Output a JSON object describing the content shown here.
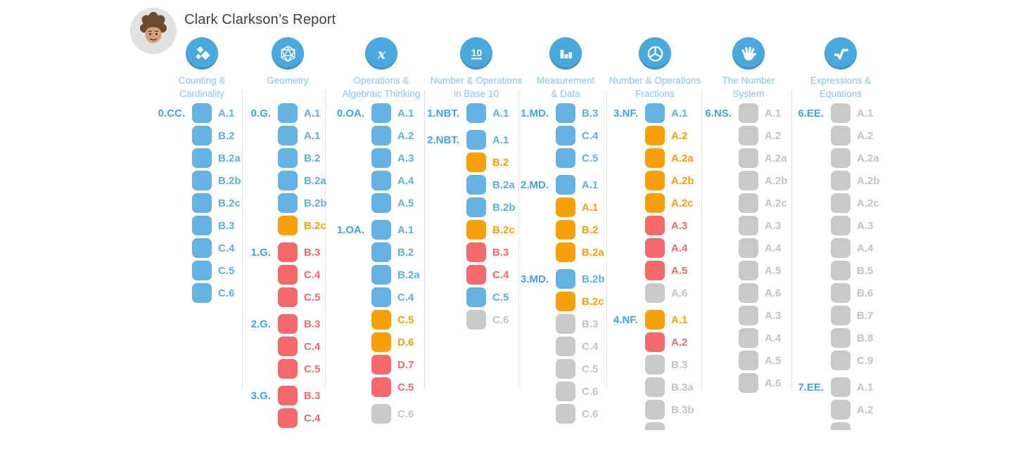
{
  "header": {
    "title": "Clark Clarkson’s Report"
  },
  "colors": {
    "icon_circle": "#49a9dd",
    "category_title": "#88c5eb",
    "group_label": "#3fa5dc",
    "divider": "#e4e4e4",
    "status_box": {
      "blue": "#64b2e2",
      "orange": "#f7a008",
      "red": "#f4696b",
      "gray": "#c9c9c9"
    },
    "status_text": {
      "blue": "#5fb0e1",
      "orange": "#f7a008",
      "red": "#f4696b",
      "gray": "#c3c3c3"
    }
  },
  "columns": [
    {
      "id": "counting-cardinality",
      "icon": "counting-cardinality-icon",
      "title_lines": [
        "Counting &",
        "Cardinality"
      ],
      "groups": [
        {
          "label": "0.CC.",
          "items": [
            {
              "code": "A.1",
              "status": "blue"
            },
            {
              "code": "B.2",
              "status": "blue"
            },
            {
              "code": "B.2a",
              "status": "blue"
            },
            {
              "code": "B.2b",
              "status": "blue"
            },
            {
              "code": "B.2c",
              "status": "blue"
            },
            {
              "code": "B.3",
              "status": "blue"
            },
            {
              "code": "C.4",
              "status": "blue"
            },
            {
              "code": "C.5",
              "status": "blue"
            },
            {
              "code": "C.6",
              "status": "blue"
            }
          ]
        }
      ]
    },
    {
      "id": "geometry",
      "icon": "geometry-icon",
      "title_lines": [
        "Geometry"
      ],
      "groups": [
        {
          "label": "0.G.",
          "items": [
            {
              "code": "A.1",
              "status": "blue"
            },
            {
              "code": "A.1",
              "status": "blue"
            },
            {
              "code": "B.2",
              "status": "blue"
            },
            {
              "code": "B.2a",
              "status": "blue"
            },
            {
              "code": "B.2b",
              "status": "blue"
            },
            {
              "code": "B.2c",
              "status": "orange"
            }
          ]
        },
        {
          "label": "1.G.",
          "items": [
            {
              "code": "B.3",
              "status": "red"
            },
            {
              "code": "C.4",
              "status": "red"
            },
            {
              "code": "C.5",
              "status": "red"
            }
          ]
        },
        {
          "label": "2.G.",
          "items": [
            {
              "code": "B.3",
              "status": "red"
            },
            {
              "code": "C.4",
              "status": "red"
            },
            {
              "code": "C.5",
              "status": "red"
            }
          ]
        },
        {
          "label": "3.G.",
          "items": [
            {
              "code": "B.3",
              "status": "red"
            },
            {
              "code": "C.4",
              "status": "red"
            }
          ]
        }
      ]
    },
    {
      "id": "operations-algebraic-thinking",
      "icon": "algebraic-thinking-icon",
      "title_lines": [
        "Operations &",
        "Algebraic Thinking"
      ],
      "groups": [
        {
          "label": "0.OA.",
          "items": [
            {
              "code": "A.1",
              "status": "blue"
            },
            {
              "code": "A.2",
              "status": "blue"
            },
            {
              "code": "A.3",
              "status": "blue"
            },
            {
              "code": "A.4",
              "status": "blue"
            },
            {
              "code": "A.5",
              "status": "blue"
            }
          ]
        },
        {
          "label": "1.OA.",
          "items": [
            {
              "code": "A.1",
              "status": "blue"
            },
            {
              "code": "B.2",
              "status": "blue"
            },
            {
              "code": "B.2a",
              "status": "blue"
            },
            {
              "code": "C.4",
              "status": "blue"
            },
            {
              "code": "C.5",
              "status": "orange"
            },
            {
              "code": "D.6",
              "status": "orange"
            },
            {
              "code": "D.7",
              "status": "red"
            },
            {
              "code": "C.5",
              "status": "red"
            }
          ]
        },
        {
          "label": "",
          "items": [
            {
              "code": "C.6",
              "status": "gray"
            }
          ]
        }
      ]
    },
    {
      "id": "number-operations-base-10",
      "icon": "base-ten-icon",
      "title_lines": [
        "Number & Operations",
        "in Base 10"
      ],
      "groups": [
        {
          "label": "1.NBT.",
          "items": [
            {
              "code": "A.1",
              "status": "blue"
            }
          ]
        },
        {
          "label": "2.NBT.",
          "items": [
            {
              "code": "A.1",
              "status": "blue"
            },
            {
              "code": "B.2",
              "status": "orange"
            },
            {
              "code": "B.2a",
              "status": "blue"
            },
            {
              "code": "B.2b",
              "status": "blue"
            },
            {
              "code": "B.2c",
              "status": "orange"
            },
            {
              "code": "B.3",
              "status": "red"
            },
            {
              "code": "C.4",
              "status": "red"
            },
            {
              "code": "C.5",
              "status": "blue"
            },
            {
              "code": "C.6",
              "status": "gray"
            }
          ]
        }
      ]
    },
    {
      "id": "measurement-data",
      "icon": "measurement-data-icon",
      "title_lines": [
        "Measurement",
        "& Data"
      ],
      "groups": [
        {
          "label": "1.MD.",
          "items": [
            {
              "code": "B.3",
              "status": "blue"
            },
            {
              "code": "C.4",
              "status": "blue"
            },
            {
              "code": "C.5",
              "status": "blue"
            }
          ]
        },
        {
          "label": "2.MD.",
          "items": [
            {
              "code": "A.1",
              "status": "blue"
            },
            {
              "code": "A.1",
              "status": "orange"
            },
            {
              "code": "B.2",
              "status": "orange"
            },
            {
              "code": "B.2a",
              "status": "orange"
            }
          ]
        },
        {
          "label": "3.MD.",
          "items": [
            {
              "code": "B.2b",
              "status": "blue"
            },
            {
              "code": "B.2c",
              "status": "orange"
            },
            {
              "code": "B.3",
              "status": "gray"
            },
            {
              "code": "C.4",
              "status": "gray"
            },
            {
              "code": "C.5",
              "status": "gray"
            },
            {
              "code": "C.6",
              "status": "gray"
            },
            {
              "code": "C.6",
              "status": "gray"
            }
          ]
        }
      ]
    },
    {
      "id": "number-operations-fractions",
      "icon": "fractions-icon",
      "title_lines": [
        "Number & Operations",
        "Fractions"
      ],
      "groups": [
        {
          "label": "3.NF.",
          "items": [
            {
              "code": "A.1",
              "status": "blue"
            },
            {
              "code": "A.2",
              "status": "orange"
            },
            {
              "code": "A.2a",
              "status": "orange"
            },
            {
              "code": "A.2b",
              "status": "orange"
            },
            {
              "code": "A.2c",
              "status": "orange"
            },
            {
              "code": "A.3",
              "status": "red"
            },
            {
              "code": "A.4",
              "status": "red"
            },
            {
              "code": "A.5",
              "status": "red"
            },
            {
              "code": "A.6",
              "status": "gray"
            }
          ]
        },
        {
          "label": "4.NF.",
          "items": [
            {
              "code": "A.1",
              "status": "orange"
            },
            {
              "code": "A.2",
              "status": "red"
            },
            {
              "code": "B.3",
              "status": "gray"
            },
            {
              "code": "B.3a",
              "status": "gray"
            },
            {
              "code": "B.3b",
              "status": "gray"
            },
            {
              "code": "",
              "status": "gray"
            }
          ]
        }
      ]
    },
    {
      "id": "the-number-system",
      "icon": "number-system-icon",
      "title_lines": [
        "The Number",
        "System"
      ],
      "groups": [
        {
          "label": "6.NS.",
          "items": [
            {
              "code": "A.1",
              "status": "gray"
            },
            {
              "code": "A.2",
              "status": "gray"
            },
            {
              "code": "A.2a",
              "status": "gray"
            },
            {
              "code": "A.2b",
              "status": "gray"
            },
            {
              "code": "A.2c",
              "status": "gray"
            },
            {
              "code": "A.3",
              "status": "gray"
            },
            {
              "code": "A.4",
              "status": "gray"
            },
            {
              "code": "A.5",
              "status": "gray"
            },
            {
              "code": "A.6",
              "status": "gray"
            },
            {
              "code": "A.3",
              "status": "gray"
            },
            {
              "code": "A.4",
              "status": "gray"
            },
            {
              "code": "A.5",
              "status": "gray"
            },
            {
              "code": "A.6",
              "status": "gray"
            }
          ]
        }
      ]
    },
    {
      "id": "expressions-equations",
      "icon": "expressions-equations-icon",
      "title_lines": [
        "Expressions &",
        "Equations"
      ],
      "groups": [
        {
          "label": "6.EE.",
          "items": [
            {
              "code": "A.1",
              "status": "gray"
            },
            {
              "code": "A.2",
              "status": "gray"
            },
            {
              "code": "A.2a",
              "status": "gray"
            },
            {
              "code": "A.2b",
              "status": "gray"
            },
            {
              "code": "A.2c",
              "status": "gray"
            },
            {
              "code": "A.3",
              "status": "gray"
            },
            {
              "code": "A.4",
              "status": "gray"
            },
            {
              "code": "B.5",
              "status": "gray"
            },
            {
              "code": "B.6",
              "status": "gray"
            },
            {
              "code": "B.7",
              "status": "gray"
            },
            {
              "code": "B.8",
              "status": "gray"
            },
            {
              "code": "C.9",
              "status": "gray"
            }
          ]
        },
        {
          "label": "7.EE.",
          "items": [
            {
              "code": "A.1",
              "status": "gray"
            },
            {
              "code": "A.2",
              "status": "gray"
            },
            {
              "code": "",
              "status": "gray"
            }
          ]
        }
      ]
    }
  ]
}
